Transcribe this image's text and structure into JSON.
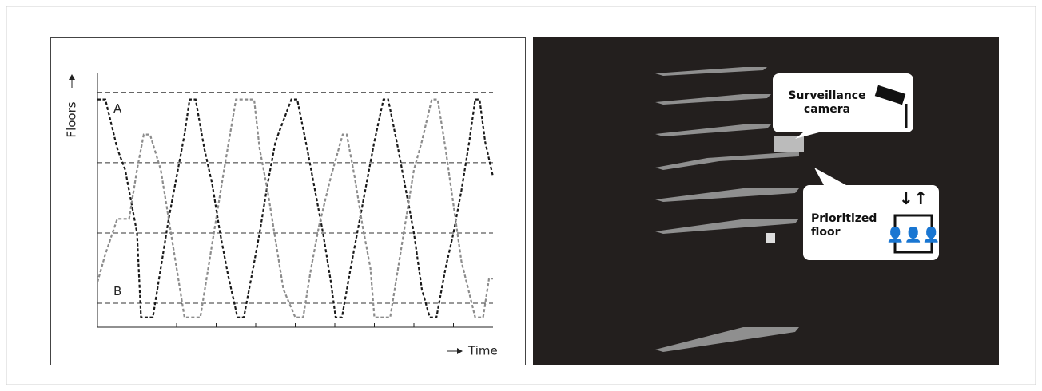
{
  "chart_data": {
    "type": "line",
    "y_label": "Floors",
    "x_label": "Time",
    "xlim": [
      0,
      10
    ],
    "ylim": [
      0.66,
      4.27
    ],
    "xticks": [
      1,
      2,
      3,
      4,
      5,
      6,
      7,
      8,
      9
    ],
    "ref_lines": [
      1,
      2,
      3,
      4
    ],
    "series": [
      {
        "name": "A",
        "color": "#1a1a1a",
        "x": [
          0,
          0.2,
          0.5,
          0.7,
          1.0,
          1.1,
          1.4,
          1.6,
          1.8,
          2.0,
          2.2,
          2.33,
          2.48,
          2.7,
          2.9,
          3.1,
          3.3,
          3.54,
          3.7,
          3.9,
          4.1,
          4.3,
          4.5,
          4.9,
          5.05,
          5.3,
          5.5,
          5.7,
          5.9,
          6.02,
          6.18,
          6.4,
          6.6,
          6.8,
          7.0,
          7.23,
          7.35,
          7.6,
          7.8,
          8.0,
          8.2,
          8.4,
          8.57,
          8.8,
          9.0,
          9.2,
          9.4,
          9.55,
          9.66,
          9.8,
          10
        ],
        "values": [
          3.9,
          3.9,
          3.2,
          2.9,
          2.0,
          0.8,
          0.8,
          1.5,
          2.2,
          2.8,
          3.4,
          3.9,
          3.9,
          3.2,
          2.7,
          2.0,
          1.4,
          0.8,
          0.8,
          1.4,
          2.0,
          2.7,
          3.3,
          3.9,
          3.9,
          3.2,
          2.6,
          2.0,
          1.3,
          0.8,
          0.8,
          1.5,
          2.1,
          2.7,
          3.3,
          3.9,
          3.9,
          3.2,
          2.6,
          2.0,
          1.2,
          0.8,
          0.8,
          1.5,
          2.0,
          2.6,
          3.3,
          3.9,
          3.9,
          3.3,
          2.8
        ]
      },
      {
        "name": "B",
        "color": "#8c8c8c",
        "x": [
          0,
          0.2,
          0.5,
          0.8,
          1.0,
          1.17,
          1.33,
          1.6,
          1.8,
          2.0,
          2.2,
          2.6,
          2.8,
          3.0,
          3.2,
          3.5,
          3.96,
          4.1,
          4.3,
          4.5,
          4.7,
          5.0,
          5.2,
          5.4,
          5.6,
          5.9,
          6.2,
          6.3,
          6.5,
          6.7,
          6.9,
          7.0,
          7.4,
          7.6,
          7.8,
          8.0,
          8.2,
          8.45,
          8.6,
          8.8,
          9.0,
          9.2,
          9.55,
          9.75,
          9.9,
          10
        ],
        "values": [
          1.3,
          1.7,
          2.2,
          2.2,
          2.9,
          3.4,
          3.4,
          2.9,
          2.2,
          1.5,
          0.8,
          0.8,
          1.5,
          2.2,
          2.9,
          3.9,
          3.9,
          3.2,
          2.6,
          1.9,
          1.2,
          0.8,
          0.8,
          1.5,
          2.1,
          2.8,
          3.4,
          3.4,
          2.8,
          2.1,
          1.5,
          0.8,
          0.8,
          1.5,
          2.2,
          2.9,
          3.3,
          3.9,
          3.9,
          3.2,
          2.4,
          1.6,
          0.8,
          0.8,
          1.35,
          1.35
        ]
      }
    ]
  },
  "illustration": {
    "callouts": [
      "Surveillance camera",
      "Prioritized floor"
    ]
  }
}
